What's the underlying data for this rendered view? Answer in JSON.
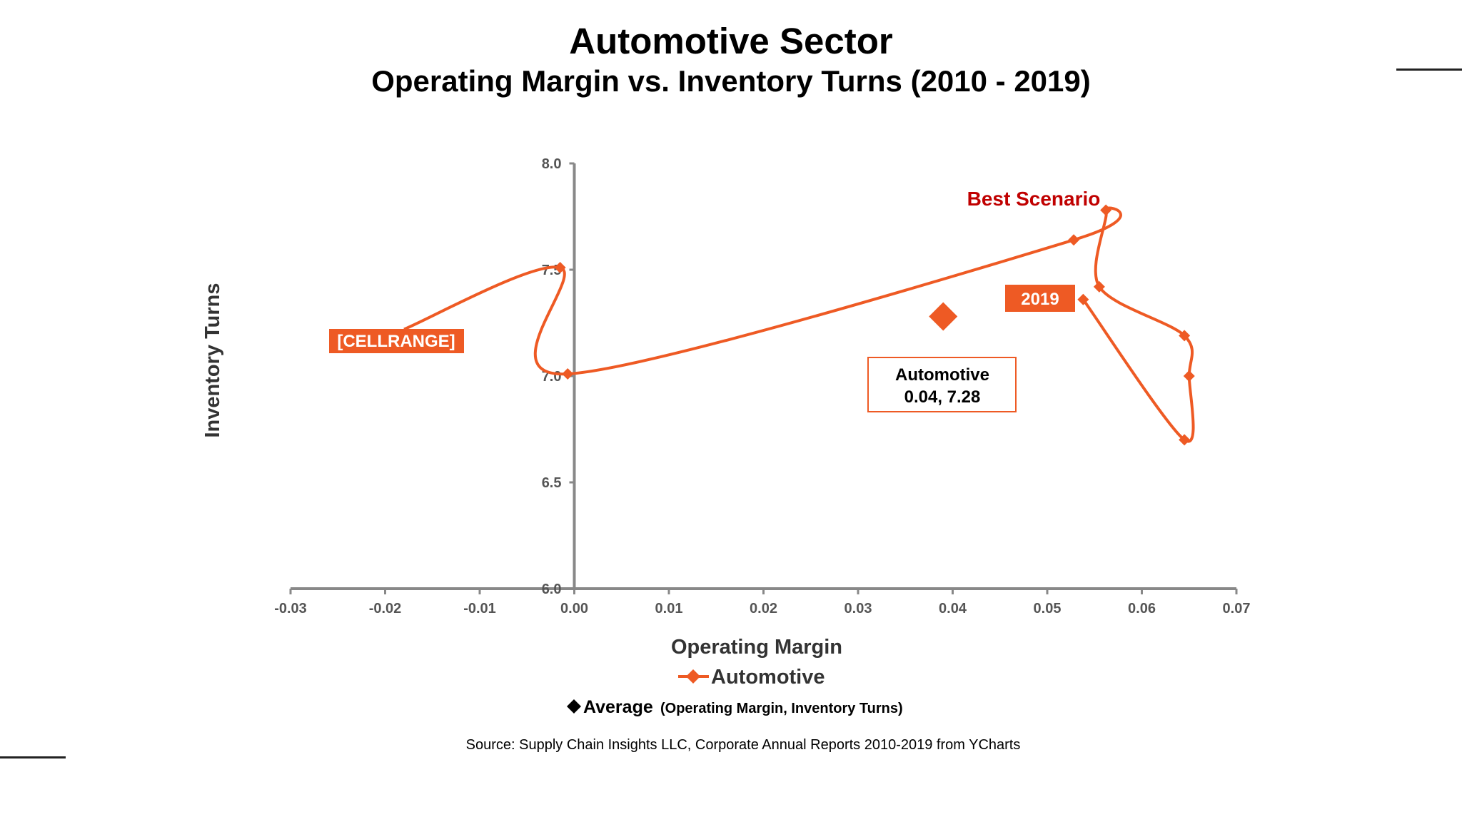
{
  "title": "Automotive Sector",
  "subtitle": "Operating Margin vs. Inventory Turns (2010 - 2019)",
  "source": "Source:  Supply Chain Insights LLC, Corporate Annual Reports 2010-2019 from YCharts",
  "colors": {
    "series": "#ee5a24",
    "accent_text": "#c00000",
    "axis": "#888888",
    "text": "#000000"
  },
  "chart_data": {
    "type": "scatter",
    "title": "",
    "xlabel": "Operating Margin",
    "ylabel": "Inventory Turns",
    "xlim": [
      -0.03,
      0.07
    ],
    "ylim": [
      6.0,
      8.0
    ],
    "x_ticks": [
      "-0.03",
      "-0.02",
      "-0.01",
      "0.00",
      "0.01",
      "0.02",
      "0.03",
      "0.04",
      "0.05",
      "0.06",
      "0.07"
    ],
    "y_ticks": [
      "6.0",
      "6.5",
      "7.0",
      "7.5",
      "8.0"
    ],
    "grid": false,
    "smoothed_lines": true,
    "series": [
      {
        "name": "Automotive",
        "marker": "diamond",
        "points": [
          {
            "x": -0.018,
            "y": 7.22
          },
          {
            "x": -0.0015,
            "y": 7.51
          },
          {
            "x": -0.0007,
            "y": 7.01
          },
          {
            "x": 0.0528,
            "y": 7.64
          },
          {
            "x": 0.0562,
            "y": 7.78
          },
          {
            "x": 0.0555,
            "y": 7.42
          },
          {
            "x": 0.0645,
            "y": 7.19
          },
          {
            "x": 0.065,
            "y": 7.0
          },
          {
            "x": 0.0645,
            "y": 6.7
          },
          {
            "x": 0.0538,
            "y": 7.36
          }
        ]
      }
    ],
    "average": {
      "name": "Average",
      "x": 0.039,
      "y": 7.28
    },
    "annotations": {
      "start_label": "[CELLRANGE]",
      "end_label": "2019",
      "best": "Best Scenario",
      "avg_box_line1": "Automotive",
      "avg_box_line2": "0.04, 7.28"
    },
    "legend": {
      "series_label": "Automotive",
      "average_label": "Average",
      "average_note": "(Operating Margin, Inventory Turns)",
      "position": "bottom"
    }
  }
}
